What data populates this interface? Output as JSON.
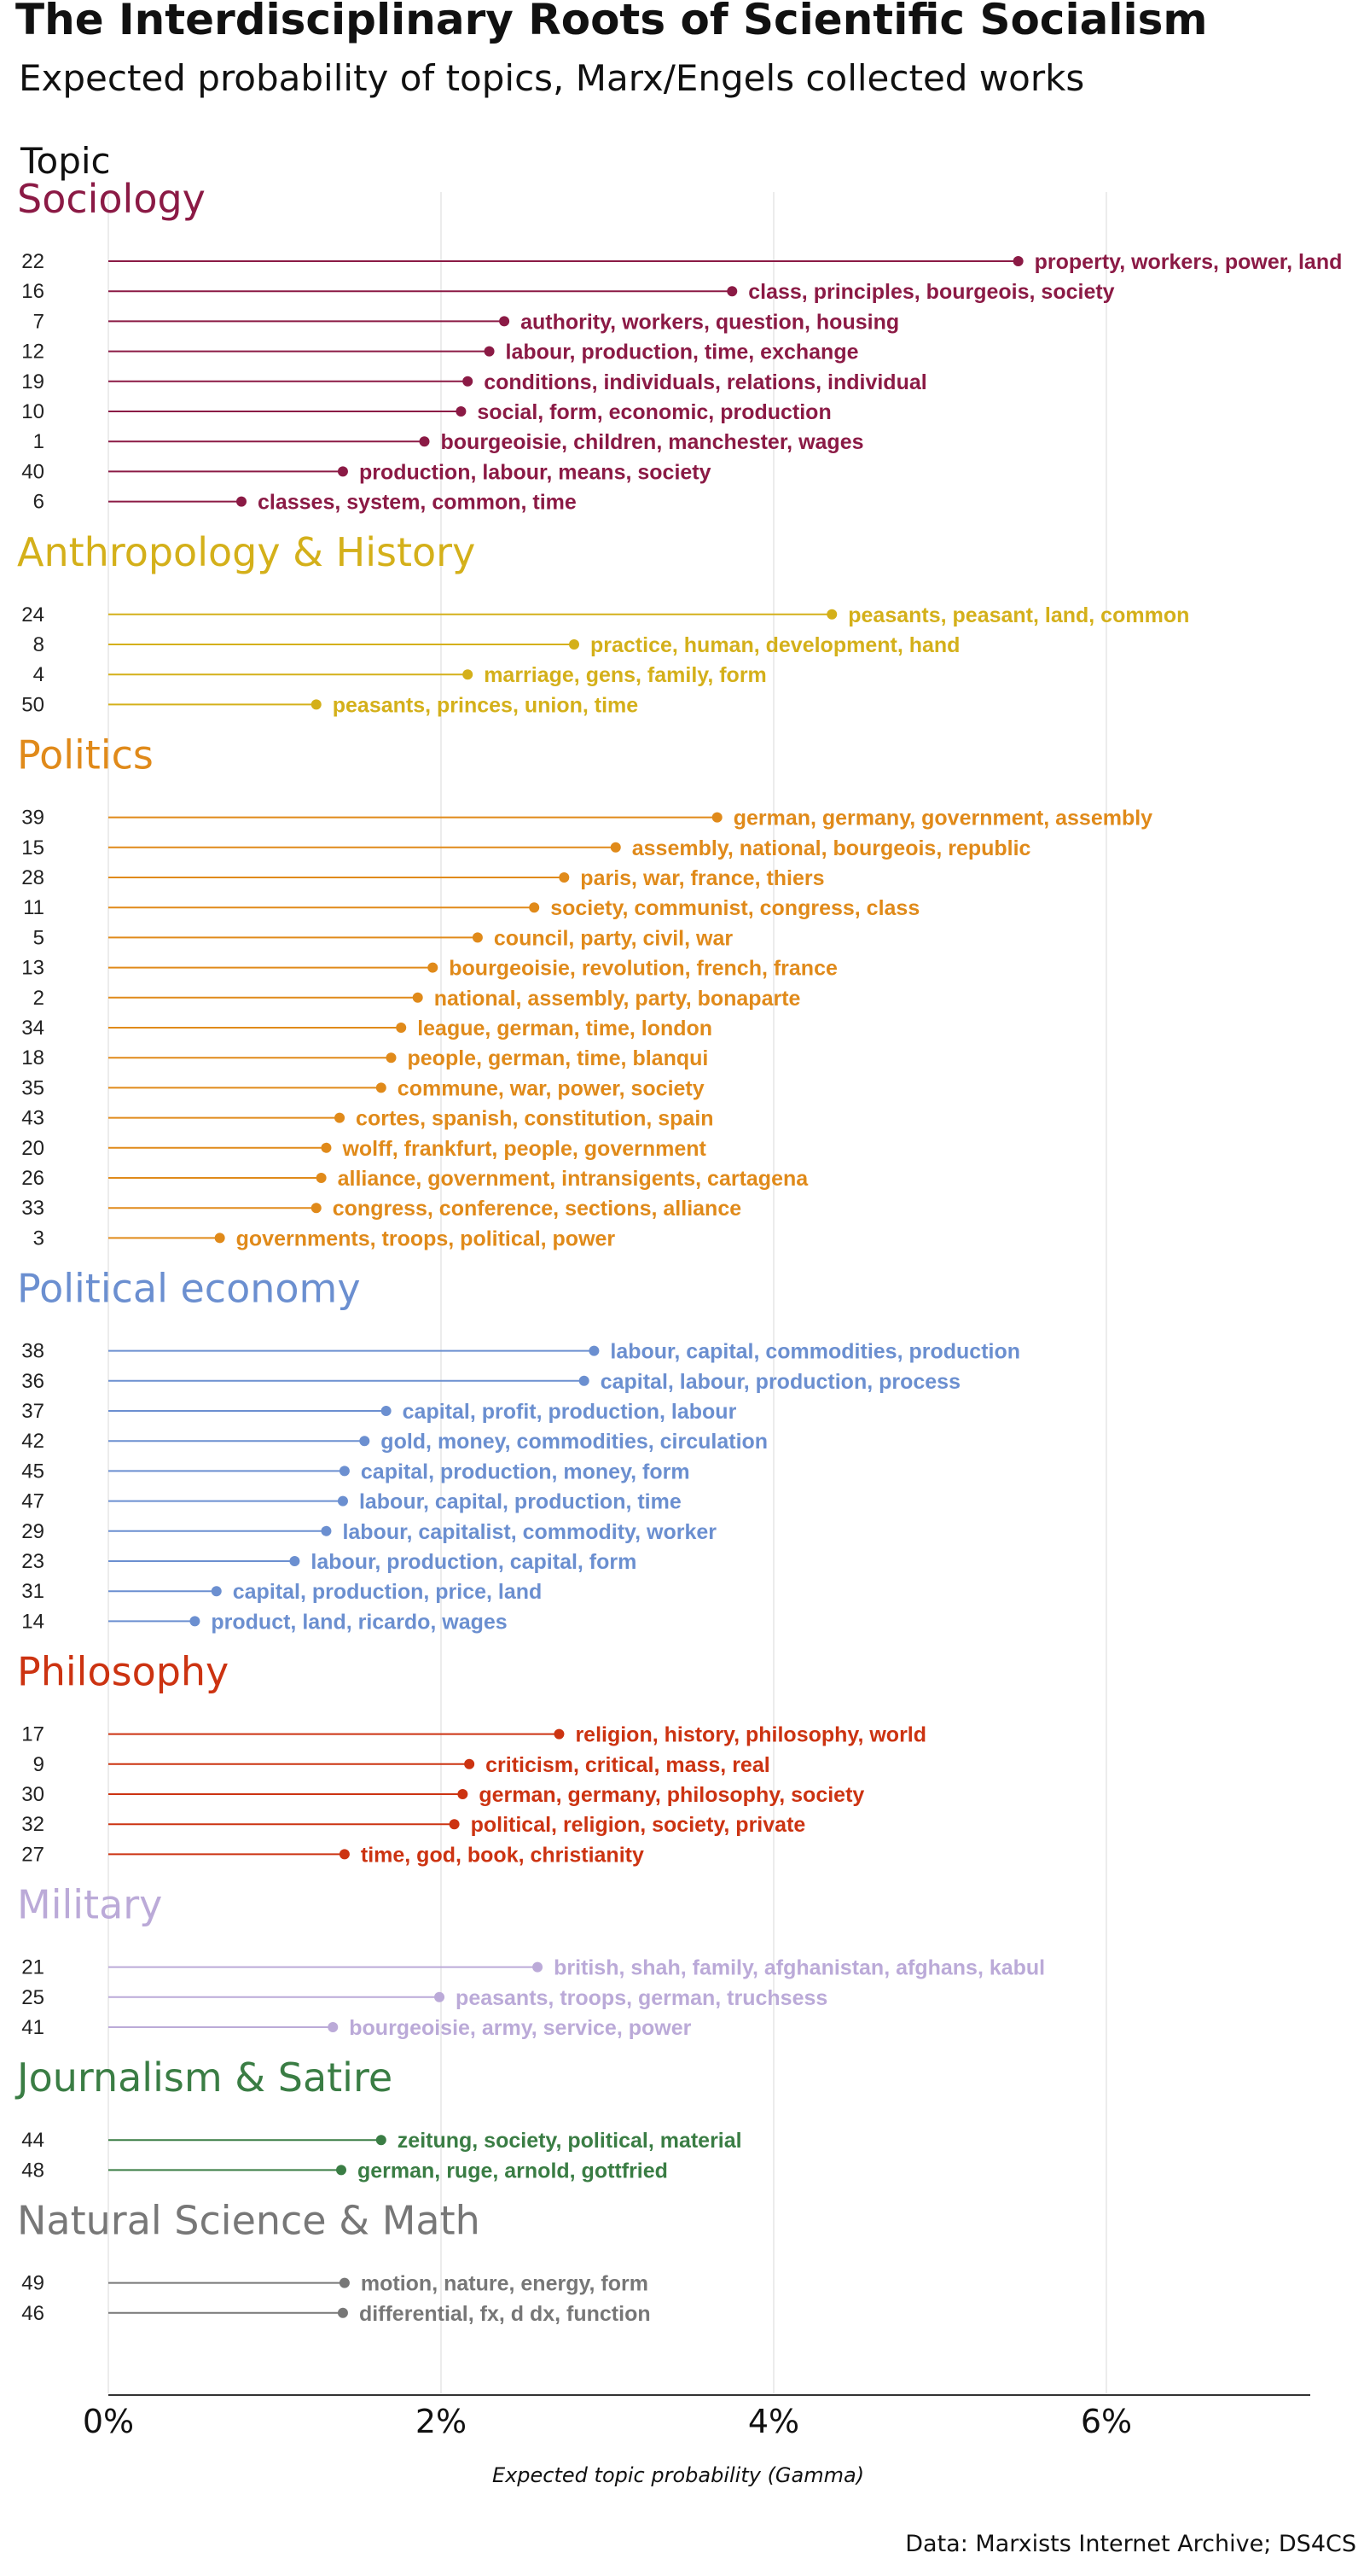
{
  "title": "The Interdisciplinary Roots of Scientific Socialism",
  "subtitle": "Expected probability of topics, Marx/Engels collected works",
  "legend_title": "Topic",
  "caption": "Data: Marxists Internet Archive; DS4CS",
  "chart_data": {
    "type": "lollipop",
    "xlabel": "Expected topic probability (Gamma)",
    "xlim": [
      0,
      0.072
    ],
    "xticks": [
      0,
      0.02,
      0.04,
      0.06
    ],
    "xtick_labels": [
      "0%",
      "2%",
      "4%",
      "6%"
    ],
    "grid": "vertical",
    "groups": [
      {
        "name": "Sociology",
        "color": "#8b1a45",
        "topics": [
          {
            "id": "22",
            "label": "property, workers, power, land",
            "value": 0.0547
          },
          {
            "id": "16",
            "label": "class, principles, bourgeois, society",
            "value": 0.0375
          },
          {
            "id": "7",
            "label": "authority, workers, question, housing",
            "value": 0.0238
          },
          {
            "id": "12",
            "label": "labour, production, time, exchange",
            "value": 0.0229
          },
          {
            "id": "19",
            "label": "conditions, individuals, relations, individual",
            "value": 0.0216
          },
          {
            "id": "10",
            "label": "social, form, economic, production",
            "value": 0.0212
          },
          {
            "id": "1",
            "label": "bourgeoisie, children, manchester, wages",
            "value": 0.019
          },
          {
            "id": "40",
            "label": "production, labour, means, society",
            "value": 0.0141
          },
          {
            "id": "6",
            "label": "classes, system, common, time",
            "value": 0.008
          }
        ]
      },
      {
        "name": "Anthropology & History",
        "color": "#d4b01a",
        "topics": [
          {
            "id": "24",
            "label": "peasants, peasant, land, common",
            "value": 0.0435
          },
          {
            "id": "8",
            "label": "practice, human, development, hand",
            "value": 0.028
          },
          {
            "id": "4",
            "label": "marriage, gens, family, form",
            "value": 0.0216
          },
          {
            "id": "50",
            "label": "peasants, princes, union, time",
            "value": 0.0125
          }
        ]
      },
      {
        "name": "Politics",
        "color": "#e08a1a",
        "topics": [
          {
            "id": "39",
            "label": "german, germany, government, assembly",
            "value": 0.0366
          },
          {
            "id": "15",
            "label": "assembly, national, bourgeois, republic",
            "value": 0.0305
          },
          {
            "id": "28",
            "label": "paris, war, france, thiers",
            "value": 0.0274
          },
          {
            "id": "11",
            "label": "society, communist, congress, class",
            "value": 0.0256
          },
          {
            "id": "5",
            "label": "council, party, civil, war",
            "value": 0.0222
          },
          {
            "id": "13",
            "label": "bourgeoisie, revolution, french, france",
            "value": 0.0195
          },
          {
            "id": "2",
            "label": "national, assembly, party, bonaparte",
            "value": 0.0186
          },
          {
            "id": "34",
            "label": "league, german, time, london",
            "value": 0.0176
          },
          {
            "id": "18",
            "label": "people, german, time, blanqui",
            "value": 0.017
          },
          {
            "id": "35",
            "label": "commune, war, power, society",
            "value": 0.0164
          },
          {
            "id": "43",
            "label": "cortes, spanish, constitution, spain",
            "value": 0.0139
          },
          {
            "id": "20",
            "label": "wolff, frankfurt, people, government",
            "value": 0.0131
          },
          {
            "id": "26",
            "label": "alliance, government, intransigents, cartagena",
            "value": 0.0128
          },
          {
            "id": "33",
            "label": "congress, conference, sections, alliance",
            "value": 0.0125
          },
          {
            "id": "3",
            "label": "governments, troops, political, power",
            "value": 0.0067
          }
        ]
      },
      {
        "name": "Political economy",
        "color": "#6b8fd0",
        "topics": [
          {
            "id": "38",
            "label": "labour, capital, commodities, production",
            "value": 0.0292
          },
          {
            "id": "36",
            "label": "capital, labour, production, process",
            "value": 0.0286
          },
          {
            "id": "37",
            "label": "capital, profit, production, labour",
            "value": 0.0167
          },
          {
            "id": "42",
            "label": "gold, money, commodities, circulation",
            "value": 0.0154
          },
          {
            "id": "45",
            "label": "capital, production, money, form",
            "value": 0.0142
          },
          {
            "id": "47",
            "label": "labour, capital, production, time",
            "value": 0.0141
          },
          {
            "id": "29",
            "label": "labour, capitalist, commodity, worker",
            "value": 0.0131
          },
          {
            "id": "23",
            "label": "labour, production, capital, form",
            "value": 0.0112
          },
          {
            "id": "31",
            "label": "capital, production, price, land",
            "value": 0.0065
          },
          {
            "id": "14",
            "label": "product, land, ricardo, wages",
            "value": 0.0052
          }
        ]
      },
      {
        "name": "Philosophy",
        "color": "#cc3311",
        "topics": [
          {
            "id": "17",
            "label": "religion, history, philosophy, world",
            "value": 0.0271
          },
          {
            "id": "9",
            "label": "criticism, critical, mass, real",
            "value": 0.0217
          },
          {
            "id": "30",
            "label": "german, germany, philosophy, society",
            "value": 0.0213
          },
          {
            "id": "32",
            "label": "political, religion, society, private",
            "value": 0.0208
          },
          {
            "id": "27",
            "label": "time, god, book, christianity",
            "value": 0.0142
          }
        ]
      },
      {
        "name": "Military",
        "color": "#bbaad8",
        "topics": [
          {
            "id": "21",
            "label": "british, shah, family, afghanistan, afghans, kabul",
            "value": 0.0258
          },
          {
            "id": "25",
            "label": "peasants, troops, german, truchsess",
            "value": 0.0199
          },
          {
            "id": "41",
            "label": "bourgeoisie, army, service, power",
            "value": 0.0135
          }
        ]
      },
      {
        "name": "Journalism & Satire",
        "color": "#3a7d44",
        "topics": [
          {
            "id": "44",
            "label": "zeitung, society, political, material",
            "value": 0.0164
          },
          {
            "id": "48",
            "label": "german, ruge, arnold, gottfried",
            "value": 0.014
          }
        ]
      },
      {
        "name": "Natural Science & Math",
        "color": "#777777",
        "topics": [
          {
            "id": "49",
            "label": "motion, nature, energy, form",
            "value": 0.0142
          },
          {
            "id": "46",
            "label": "differential, fx, d  dx, function",
            "value": 0.0141
          }
        ]
      }
    ]
  }
}
